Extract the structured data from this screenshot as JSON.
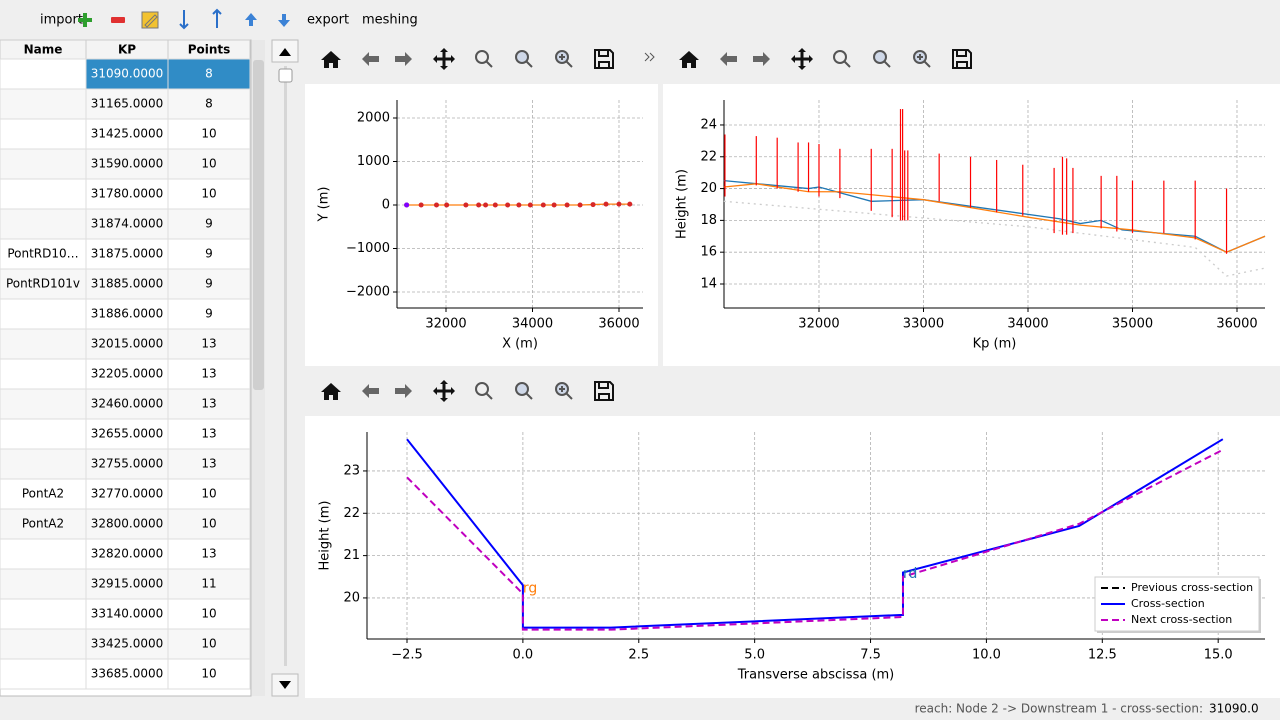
{
  "toolbar": {
    "items": [
      "import",
      "export",
      "meshing"
    ]
  },
  "table": {
    "headers": [
      "Name",
      "KP",
      "Points"
    ],
    "rows": [
      [
        null,
        "31090.0000",
        8
      ],
      [
        null,
        "31165.0000",
        8
      ],
      [
        null,
        "31425.0000",
        10
      ],
      [
        null,
        "31590.0000",
        10
      ],
      [
        null,
        "31780.0000",
        10
      ],
      [
        null,
        "31874.0000",
        9
      ],
      [
        "PontRD10…",
        "31875.0000",
        9
      ],
      [
        "PontRD101v",
        "31885.0000",
        9
      ],
      [
        null,
        "31886.0000",
        9
      ],
      [
        null,
        "32015.0000",
        13
      ],
      [
        null,
        "32205.0000",
        13
      ],
      [
        null,
        "32460.0000",
        13
      ],
      [
        null,
        "32655.0000",
        13
      ],
      [
        null,
        "32755.0000",
        13
      ],
      [
        "PontA2",
        "32770.0000",
        10
      ],
      [
        "PontA2",
        "32800.0000",
        10
      ],
      [
        null,
        "32820.0000",
        13
      ],
      [
        null,
        "32915.0000",
        11
      ],
      [
        null,
        "33140.0000",
        10
      ],
      [
        null,
        "33425.0000",
        10
      ],
      [
        null,
        "33685.0000",
        10
      ]
    ]
  },
  "plots": [
    {
      "xlabel": "X (m)",
      "ylabel": "Y (m)",
      "xlim": [
        30867,
        36555
      ],
      "ylim": [
        -2368,
        2414
      ],
      "xticks": [
        32000,
        34000,
        36000
      ],
      "yticks": [
        {
          "value": -2000,
          "label": "−2000"
        },
        {
          "value": -1000,
          "label": "−1000"
        },
        0,
        1000,
        2000
      ],
      "grid": true,
      "series": [
        {
          "color": "#ff7f0e",
          "marker_color": "#d62728",
          "style": "solid",
          "x": [
            31090,
            31425,
            31780,
            32015,
            32460,
            32755,
            32915,
            33140,
            33425,
            33685,
            33950,
            34250,
            34500,
            34800,
            35100,
            35400,
            35700,
            36000,
            36250
          ],
          "y": [
            0,
            0,
            0,
            0,
            0,
            0,
            0,
            0,
            0,
            0,
            0,
            0,
            0,
            0,
            0,
            10,
            20,
            20,
            20
          ]
        },
        {
          "color": "#7f00ff",
          "marker_color": "#7f00ff",
          "style": "none",
          "x": [
            31090
          ],
          "y": [
            0
          ]
        }
      ]
    },
    {
      "xlabel": "Kp (m)",
      "ylabel": "Height (m)",
      "xlim": [
        31091,
        36268
      ],
      "ylim": [
        12.49,
        25.57
      ],
      "xticks": [
        32000,
        33000,
        34000,
        35000,
        36000
      ],
      "yticks": [
        14,
        16,
        18,
        20,
        22,
        24
      ],
      "grid": true,
      "series": [
        {
          "color": "#1f77b4",
          "style": "solid",
          "x": [
            31090,
            31900,
            32000,
            32500,
            33000,
            34300,
            34500,
            34700,
            34900,
            35600,
            35900,
            36268
          ],
          "y": [
            20.5,
            20.0,
            20.1,
            19.2,
            19.3,
            18.1,
            17.8,
            18.0,
            17.4,
            17.0,
            16.0,
            17.0
          ]
        },
        {
          "color": "#ff7f0e",
          "style": "solid",
          "x": [
            31090,
            31400,
            31900,
            32200,
            33000,
            34000,
            34500,
            35000,
            35600,
            35900,
            36268
          ],
          "y": [
            20.1,
            20.3,
            19.8,
            19.8,
            19.3,
            18.2,
            17.7,
            17.4,
            16.9,
            16.0,
            17.0
          ]
        },
        {
          "color": "#cccccc",
          "style": "dotted",
          "x": [
            31090,
            34000,
            35600,
            35900,
            36268
          ],
          "y": [
            19.2,
            17.6,
            16.3,
            14.5,
            15.0
          ]
        },
        {
          "color": "#ff0000",
          "style": "vlines",
          "x": [
            31100,
            31400,
            31600,
            31800,
            31900,
            32000,
            32200,
            32500,
            32700,
            32780,
            32800,
            32820,
            32850,
            33150,
            33450,
            33700,
            33950,
            34250,
            34330,
            34370,
            34430,
            34700,
            34850,
            35000,
            35300,
            35600,
            35900
          ],
          "low": [
            19.5,
            20.2,
            20.0,
            19.8,
            19.8,
            19.5,
            19.4,
            18.6,
            18.2,
            18.0,
            18.0,
            18.0,
            18.0,
            19.2,
            18.8,
            18.5,
            18.3,
            17.2,
            17.1,
            17.1,
            17.2,
            17.5,
            17.3,
            17.2,
            17.2,
            16.8,
            15.9
          ],
          "high": [
            23.4,
            23.3,
            23.2,
            22.9,
            22.9,
            22.8,
            22.5,
            22.5,
            22.5,
            25.0,
            25.0,
            22.4,
            22.4,
            22.2,
            22.0,
            21.8,
            21.5,
            21.3,
            22.0,
            21.9,
            21.3,
            20.8,
            20.8,
            20.5,
            20.5,
            20.5,
            20.0
          ]
        }
      ]
    },
    {
      "xlabel": "Transverse abscissa (m)",
      "ylabel": "Height (m)",
      "xlim": [
        -3.363,
        16.01
      ],
      "ylim": [
        19.03,
        23.92
      ],
      "xticks": [
        {
          "value": -2.5,
          "label": "−2.5"
        },
        {
          "value": 0,
          "label": "0.0"
        },
        2.5,
        {
          "value": 5,
          "label": "5.0"
        },
        7.5,
        {
          "value": 10,
          "label": "10.0"
        },
        12.5,
        {
          "value": 15,
          "label": "15.0"
        }
      ],
      "yticks": [
        20,
        21,
        22,
        23
      ],
      "grid": true,
      "legend": "lower right",
      "series": [
        {
          "name": "Previous cross-section",
          "color": "#000000",
          "style": "dashed",
          "x": [],
          "y": []
        },
        {
          "name": "Cross-section",
          "color": "#0000ff",
          "style": "solid",
          "x": [
            -2.5,
            0,
            0,
            1.9,
            8.2,
            8.2,
            12,
            15.1
          ],
          "y": [
            23.75,
            20.3,
            19.3,
            19.3,
            19.6,
            20.6,
            21.7,
            23.75
          ]
        },
        {
          "name": "Next cross-section",
          "color": "#c000c0",
          "style": "dashed",
          "x": [
            -2.5,
            0,
            0,
            1.9,
            8.2,
            8.2,
            12,
            15.1
          ],
          "y": [
            22.85,
            20.1,
            19.25,
            19.25,
            19.55,
            20.5,
            21.75,
            23.5
          ]
        }
      ],
      "annotations": [
        {
          "text": "rg",
          "x": 0,
          "y": 20.1,
          "color": "#ff7f0e"
        },
        {
          "text": "rd",
          "x": 8.2,
          "y": 20.45,
          "color": "#1f77b4"
        }
      ]
    }
  ],
  "status": {
    "text": "reach: Node 2 -> Downstream 1 - cross-section:",
    "value": "31090.0"
  }
}
